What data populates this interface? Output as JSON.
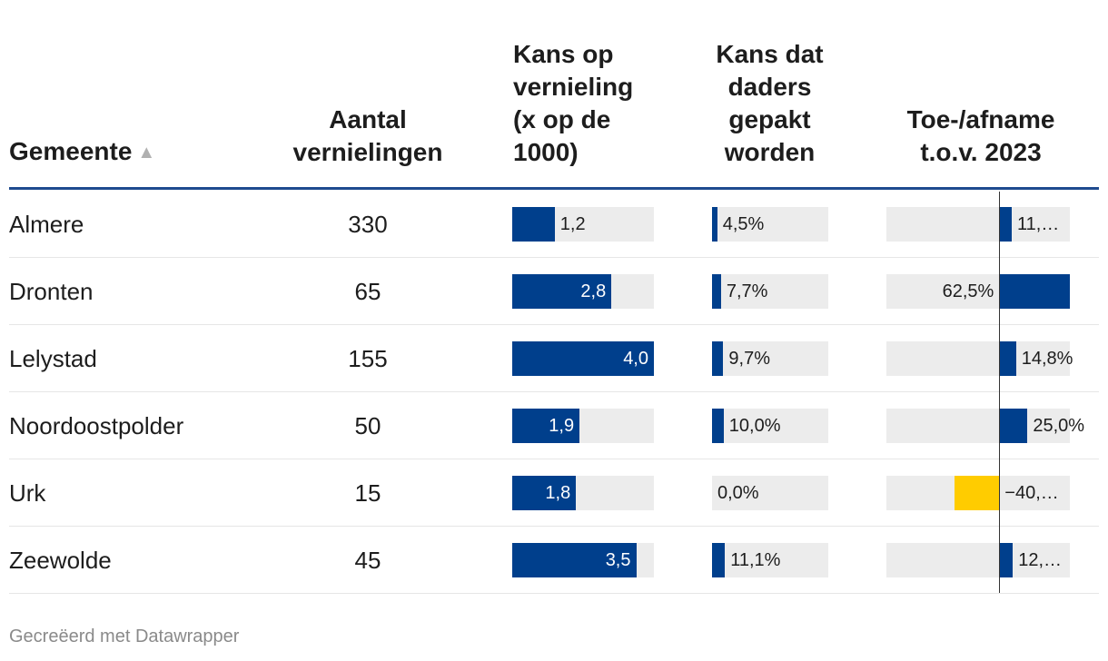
{
  "table": {
    "headers": {
      "gemeente": "Gemeente",
      "aantal": "Aantal vernielingen",
      "kans": "Kans op vernieling (x op de 1000)",
      "daders": "Kans dat daders gepakt worden",
      "change": "Toe-/afname t.o.v. 2023"
    },
    "sort_icon": "▲"
  },
  "chart_data": {
    "type": "table",
    "columns": [
      "Gemeente",
      "Aantal vernielingen",
      "Kans op vernieling (x op de 1000)",
      "Kans dat daders gepakt worden",
      "Toe-/afname t.o.v. 2023"
    ],
    "scales": {
      "kans_max": 4.0,
      "daders_max": 100,
      "change_range": [
        -100,
        62.5
      ]
    },
    "rows": [
      {
        "name": "Almere",
        "count": "330",
        "kans": 1.2,
        "kans_label": "1,2",
        "daders": 4.5,
        "daders_label": "4,5%",
        "change": 11.0,
        "change_label": "11,…"
      },
      {
        "name": "Dronten",
        "count": "65",
        "kans": 2.8,
        "kans_label": "2,8",
        "daders": 7.7,
        "daders_label": "7,7%",
        "change": 62.5,
        "change_label": "62,5%"
      },
      {
        "name": "Lelystad",
        "count": "155",
        "kans": 4.0,
        "kans_label": "4,0",
        "daders": 9.7,
        "daders_label": "9,7%",
        "change": 14.8,
        "change_label": "14,8%"
      },
      {
        "name": "Noordoostpolder",
        "count": "50",
        "kans": 1.9,
        "kans_label": "1,9",
        "daders": 10.0,
        "daders_label": "10,0%",
        "change": 25.0,
        "change_label": "25,0%"
      },
      {
        "name": "Urk",
        "count": "15",
        "kans": 1.8,
        "kans_label": "1,8",
        "daders": 0.0,
        "daders_label": "0,0%",
        "change": -40.0,
        "change_label": "−40,…"
      },
      {
        "name": "Zeewolde",
        "count": "45",
        "kans": 3.5,
        "kans_label": "3,5",
        "daders": 11.1,
        "daders_label": "11,1%",
        "change": 12.0,
        "change_label": "12,…"
      }
    ]
  },
  "colors": {
    "positive": "#003f8c",
    "negative": "#ffcc00",
    "track": "#ececec",
    "rule": "#1f4b8f"
  },
  "footer": {
    "credit": "Gecreëerd met Datawrapper"
  }
}
